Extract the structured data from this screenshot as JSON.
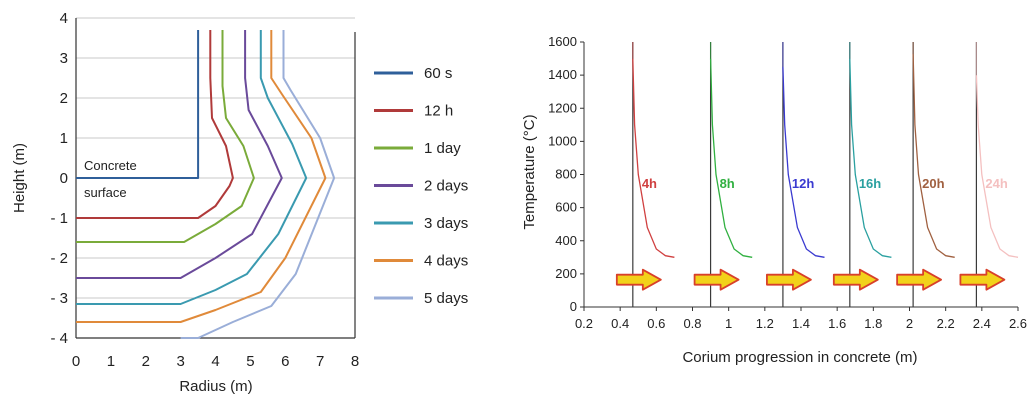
{
  "chart_data": [
    {
      "type": "line",
      "xlabel": "Radius (m)",
      "ylabel": "Height (m)",
      "xlim": [
        0,
        8
      ],
      "ylim": [
        -4,
        4
      ],
      "xticks": [
        "0",
        "1",
        "2",
        "3",
        "4",
        "5",
        "6",
        "7",
        "8"
      ],
      "yticks": [
        "4",
        "3",
        "2",
        "1",
        "0",
        "- 1",
        "- 2",
        "- 3",
        "- 4"
      ],
      "grid": "horizontal",
      "legend_position": "right",
      "annotations": [
        "Concrete",
        "surface"
      ],
      "series": [
        {
          "name": "60 s",
          "color": "#2f5f9a",
          "x": [
            0,
            3.5,
            3.5
          ],
          "y": [
            0,
            0,
            3.7
          ]
        },
        {
          "name": "12 h",
          "color": "#b03a3a",
          "x": [
            0,
            3.5,
            4.0,
            4.4,
            4.5,
            4.3,
            3.9,
            3.85,
            3.85
          ],
          "y": [
            -1,
            -1,
            -0.7,
            -0.2,
            0,
            0.8,
            1.5,
            2.5,
            3.7
          ]
        },
        {
          "name": "1 day",
          "color": "#7aab3a",
          "x": [
            0,
            3.1,
            4.0,
            4.75,
            5.1,
            4.8,
            4.3,
            4.2,
            4.2
          ],
          "y": [
            -1.6,
            -1.6,
            -1.15,
            -0.7,
            0,
            0.8,
            1.5,
            2.3,
            3.7
          ]
        },
        {
          "name": "2 days",
          "color": "#6a4a9a",
          "x": [
            0,
            3.0,
            4.0,
            5.05,
            5.9,
            5.5,
            4.95,
            4.85,
            4.85
          ],
          "y": [
            -2.5,
            -2.5,
            -2.0,
            -1.4,
            0,
            0.8,
            1.7,
            2.5,
            3.7
          ]
        },
        {
          "name": "3 days",
          "color": "#3a9ab0",
          "x": [
            0,
            3.0,
            4.0,
            4.9,
            5.8,
            6.6,
            6.2,
            5.5,
            5.3,
            5.3
          ],
          "y": [
            -3.15,
            -3.15,
            -2.8,
            -2.4,
            -1.4,
            0,
            0.85,
            2.0,
            2.5,
            3.7
          ]
        },
        {
          "name": "4 days",
          "color": "#e08a3a",
          "x": [
            0,
            3.0,
            4.0,
            5.3,
            6.0,
            7.15,
            6.75,
            5.9,
            5.6,
            5.6
          ],
          "y": [
            -3.6,
            -3.6,
            -3.3,
            -2.85,
            -2.0,
            0,
            1.0,
            2.1,
            2.5,
            3.7
          ]
        },
        {
          "name": "5 days",
          "color": "#9aaed8",
          "x": [
            3.0,
            3.5,
            4.5,
            5.6,
            6.3,
            7.4,
            7.0,
            6.15,
            5.95,
            5.95
          ],
          "y": [
            -4.0,
            -4.0,
            -3.6,
            -3.2,
            -2.4,
            0,
            1.0,
            2.2,
            2.5,
            3.7
          ]
        }
      ]
    },
    {
      "type": "line",
      "xlabel": "Corium progression in concrete (m)",
      "ylabel": "Temperature (°C)",
      "xlim": [
        0.2,
        2.6
      ],
      "ylim": [
        0,
        1600
      ],
      "xticks": [
        "0.2",
        "0.4",
        "0.6",
        "0.8",
        "1",
        "1.2",
        "1.4",
        "1.6",
        "1.8",
        "2",
        "2.2",
        "2.4",
        "2.6"
      ],
      "yticks": [
        "0",
        "200",
        "400",
        "600",
        "800",
        "1000",
        "1200",
        "1400",
        "1600"
      ],
      "grid": "none",
      "series": [
        {
          "name": "4h",
          "color": "#d04040",
          "front_x": 0.47,
          "x": [
            0.47,
            0.48,
            0.5,
            0.55,
            0.6,
            0.65,
            0.7
          ],
          "y": [
            1500,
            1100,
            800,
            480,
            350,
            310,
            300
          ]
        },
        {
          "name": "8h",
          "color": "#30b040",
          "front_x": 0.9,
          "x": [
            0.9,
            0.91,
            0.93,
            0.98,
            1.03,
            1.08,
            1.13
          ],
          "y": [
            1500,
            1100,
            800,
            480,
            350,
            310,
            300
          ]
        },
        {
          "name": "12h",
          "color": "#3a3ad0",
          "front_x": 1.3,
          "x": [
            1.3,
            1.31,
            1.33,
            1.38,
            1.43,
            1.48,
            1.53
          ],
          "y": [
            1450,
            1100,
            800,
            480,
            350,
            310,
            300
          ]
        },
        {
          "name": "16h",
          "color": "#2aa0a0",
          "front_x": 1.67,
          "x": [
            1.67,
            1.68,
            1.7,
            1.75,
            1.8,
            1.85,
            1.9
          ],
          "y": [
            1500,
            1100,
            800,
            480,
            350,
            310,
            300
          ]
        },
        {
          "name": "20h",
          "color": "#a06040",
          "front_x": 2.02,
          "x": [
            2.02,
            2.03,
            2.05,
            2.1,
            2.15,
            2.2,
            2.25
          ],
          "y": [
            1530,
            1100,
            800,
            480,
            350,
            310,
            300
          ]
        },
        {
          "name": "24h",
          "color": "#f4c0c0",
          "front_x": 2.37,
          "x": [
            2.37,
            2.38,
            2.4,
            2.45,
            2.5,
            2.55,
            2.6
          ],
          "y": [
            1400,
            1100,
            800,
            480,
            350,
            310,
            300
          ]
        }
      ]
    }
  ]
}
